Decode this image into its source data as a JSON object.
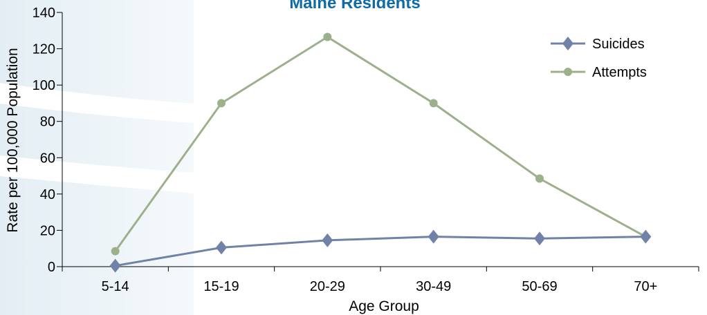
{
  "chart_data": {
    "type": "line",
    "title": "Maine Residents",
    "xlabel": "Age Group",
    "ylabel": "Rate per 100,000 Population",
    "categories": [
      "5-14",
      "15-19",
      "20-29",
      "30-49",
      "50-69",
      "70+"
    ],
    "ylim": [
      0,
      140
    ],
    "yticks": [
      0,
      20,
      40,
      60,
      80,
      100,
      120,
      140
    ],
    "grid": false,
    "legend_position": "top-right",
    "series": [
      {
        "name": "Suicides",
        "marker": "diamond",
        "color": "#7182a8",
        "values": [
          0.5,
          10.5,
          14.5,
          16.5,
          15.5,
          16.5
        ]
      },
      {
        "name": "Attempts",
        "marker": "circle",
        "color": "#9db08c",
        "values": [
          8.5,
          90,
          126.5,
          90,
          48.5,
          16.5
        ]
      }
    ],
    "colors": {
      "title": "#0f6aa8",
      "axis": "#000000"
    }
  }
}
